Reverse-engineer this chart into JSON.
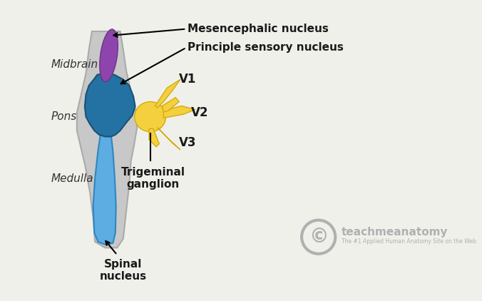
{
  "bg_color": "#f0f0eb",
  "brainstem_color": "#c8c8c8",
  "brainstem_edge": "#aaaaaa",
  "mesencephalic_color": "#8e44ad",
  "mesencephalic_edge": "#6c3483",
  "blue_nucleus_color": "#2471a3",
  "blue_nucleus_edge": "#1a5276",
  "spinal_tract_color": "#5dade2",
  "spinal_tract_edge": "#2e86c1",
  "ganglion_color": "#f4d03f",
  "ganglion_edge": "#d4ac0d",
  "text_color": "#1a1a1a",
  "italic_color": "#333333",
  "midbrain_label": "Midbrain",
  "pons_label": "Pons",
  "medulla_label": "Medulla",
  "mesencephalic_label": "Mesencephalic nucleus",
  "principle_label": "Principle sensory nucleus",
  "trigeminal_label": "Trigeminal\nganglion",
  "spinal_label": "Spinal\nnucleus",
  "v1_label": "V1",
  "v2_label": "V2",
  "v3_label": "V3",
  "copyright_text": "teachmeanatomy",
  "copyright_sub": "The #1 Applied Human Anatomy Site on the Web."
}
